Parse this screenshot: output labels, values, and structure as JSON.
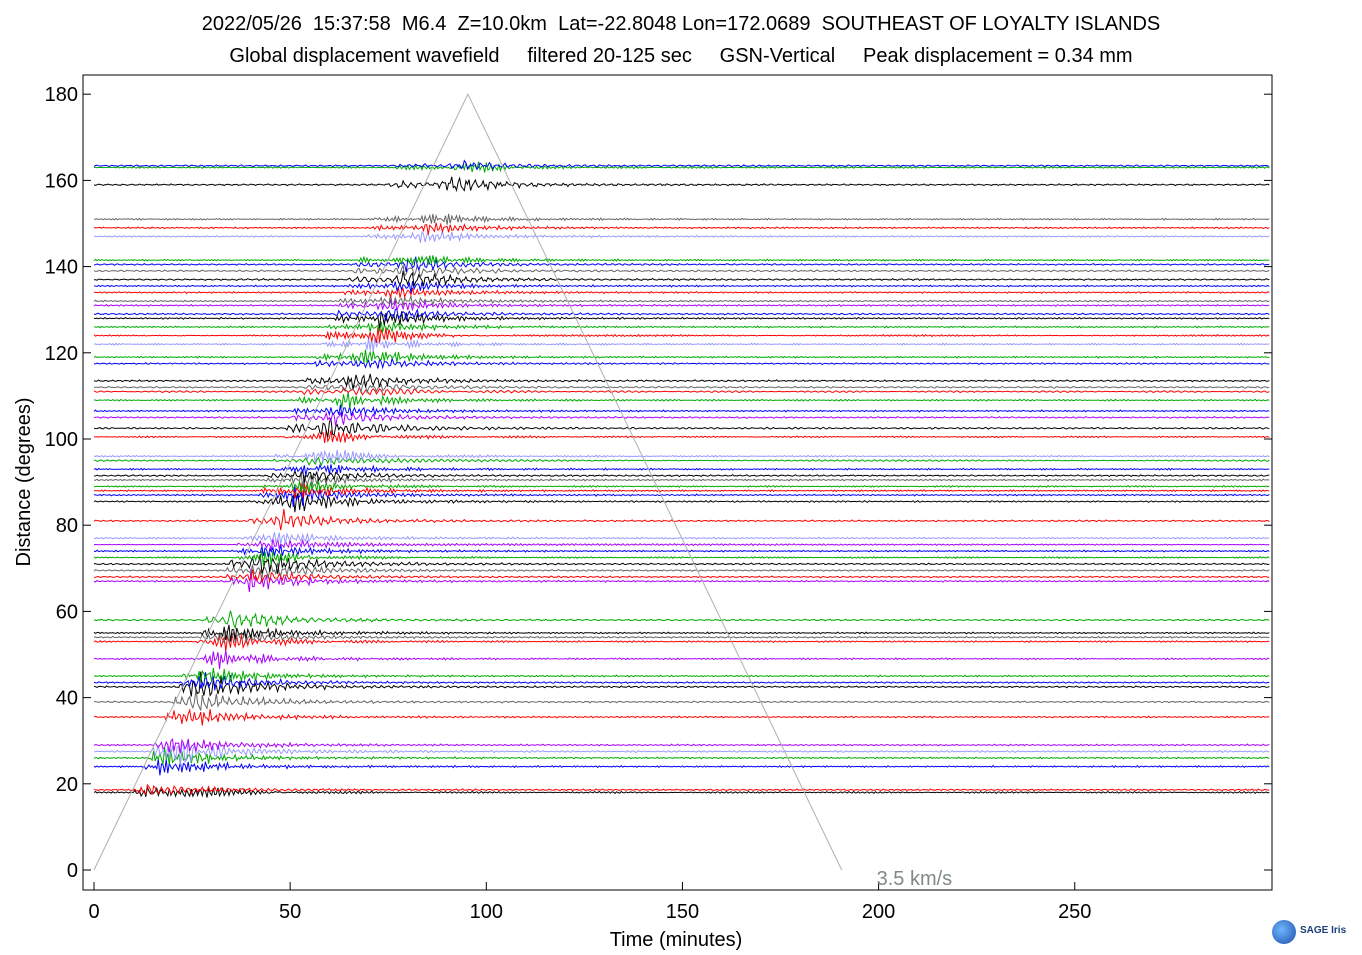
{
  "header": {
    "line1": "2022/05/26  15:37:58  M6.4  Z=10.0km  Lat=-22.8048 Lon=172.0689  SOUTHEAST OF LOYALTY ISLANDS",
    "line2": "Global displacement wavefield     filtered 20-125 sec     GSN-Vertical     Peak displacement = 0.34 mm"
  },
  "logo": {
    "text": "SAGE Iris"
  },
  "chart_data": {
    "type": "line",
    "title": "2022/05/26  15:37:58  M6.4  Z=10.0km  Lat=-22.8048 Lon=172.0689  SOUTHEAST OF LOYALTY ISLANDS",
    "subtitle": "Global displacement wavefield     filtered 20-125 sec     GSN-Vertical     Peak displacement = 0.34 mm",
    "xlabel": "Time (minutes)",
    "ylabel": "Distance (degrees)",
    "xlim": [
      -2,
      300
    ],
    "ylim": [
      -5,
      185
    ],
    "xticks": [
      0,
      50,
      100,
      150,
      200,
      250
    ],
    "yticks": [
      0,
      20,
      40,
      60,
      80,
      100,
      120,
      140,
      160,
      180
    ],
    "annotation": {
      "text": "3.5 km/s",
      "x": 200,
      "y": -2
    },
    "reference_line": {
      "label": "3.5 km/s",
      "points": [
        [
          0,
          0
        ],
        [
          95.3,
          180
        ],
        [
          190.6,
          0
        ]
      ]
    },
    "trace_colors": [
      "#000000",
      "#ff0000",
      "#0000ff",
      "#00aa00",
      "#aa00ff",
      "#9999ff",
      "#666666"
    ],
    "traces": [
      {
        "distance": 18,
        "color": "#000000",
        "amplitude": 5
      },
      {
        "distance": 18.6,
        "color": "#ff0000",
        "amplitude": 3
      },
      {
        "distance": 24,
        "color": "#0000ff",
        "amplitude": 4
      },
      {
        "distance": 26,
        "color": "#00aa00",
        "amplitude": 4
      },
      {
        "distance": 27.5,
        "color": "#9999ff",
        "amplitude": 6
      },
      {
        "distance": 29,
        "color": "#aa00ff",
        "amplitude": 4
      },
      {
        "distance": 35.5,
        "color": "#ff0000",
        "amplitude": 4
      },
      {
        "distance": 39,
        "color": "#666666",
        "amplitude": 5
      },
      {
        "distance": 42.5,
        "color": "#000000",
        "amplitude": 6
      },
      {
        "distance": 43.5,
        "color": "#0000ff",
        "amplitude": 4
      },
      {
        "distance": 45,
        "color": "#00aa00",
        "amplitude": 4
      },
      {
        "distance": 49,
        "color": "#aa00ff",
        "amplitude": 4
      },
      {
        "distance": 53,
        "color": "#ff0000",
        "amplitude": 4
      },
      {
        "distance": 54,
        "color": "#666666",
        "amplitude": 3
      },
      {
        "distance": 55,
        "color": "#000000",
        "amplitude": 4
      },
      {
        "distance": 58,
        "color": "#00aa00",
        "amplitude": 4
      },
      {
        "distance": 67,
        "color": "#aa00ff",
        "amplitude": 4
      },
      {
        "distance": 68,
        "color": "#ff0000",
        "amplitude": 3
      },
      {
        "distance": 69.5,
        "color": "#666666",
        "amplitude": 4
      },
      {
        "distance": 71,
        "color": "#000000",
        "amplitude": 5
      },
      {
        "distance": 72.5,
        "color": "#00aa00",
        "amplitude": 3
      },
      {
        "distance": 74,
        "color": "#0000ff",
        "amplitude": 3
      },
      {
        "distance": 75.5,
        "color": "#aa00ff",
        "amplitude": 4
      },
      {
        "distance": 77,
        "color": "#9999ff",
        "amplitude": 3
      },
      {
        "distance": 81,
        "color": "#ff0000",
        "amplitude": 4
      },
      {
        "distance": 85.5,
        "color": "#000000",
        "amplitude": 5
      },
      {
        "distance": 87,
        "color": "#0000ff",
        "amplitude": 4
      },
      {
        "distance": 88,
        "color": "#ff0000",
        "amplitude": 4
      },
      {
        "distance": 89,
        "color": "#00aa00",
        "amplitude": 3
      },
      {
        "distance": 90.5,
        "color": "#666666",
        "amplitude": 3
      },
      {
        "distance": 91.5,
        "color": "#000000",
        "amplitude": 3
      },
      {
        "distance": 93,
        "color": "#0000ff",
        "amplitude": 3
      },
      {
        "distance": 95,
        "color": "#00aa00",
        "amplitude": 3
      },
      {
        "distance": 96,
        "color": "#9999ff",
        "amplitude": 4
      },
      {
        "distance": 100.5,
        "color": "#ff0000",
        "amplitude": 3
      },
      {
        "distance": 102.5,
        "color": "#000000",
        "amplitude": 5
      },
      {
        "distance": 105,
        "color": "#aa00ff",
        "amplitude": 3
      },
      {
        "distance": 106.5,
        "color": "#0000ff",
        "amplitude": 3
      },
      {
        "distance": 109,
        "color": "#00aa00",
        "amplitude": 4
      },
      {
        "distance": 111,
        "color": "#ff0000",
        "amplitude": 3
      },
      {
        "distance": 112,
        "color": "#666666",
        "amplitude": 3
      },
      {
        "distance": 113.5,
        "color": "#000000",
        "amplitude": 4
      },
      {
        "distance": 117.5,
        "color": "#0000ff",
        "amplitude": 3
      },
      {
        "distance": 119,
        "color": "#00aa00",
        "amplitude": 4
      },
      {
        "distance": 122,
        "color": "#9999ff",
        "amplitude": 3
      },
      {
        "distance": 124,
        "color": "#ff0000",
        "amplitude": 4
      },
      {
        "distance": 126,
        "color": "#00aa00",
        "amplitude": 3
      },
      {
        "distance": 128,
        "color": "#000000",
        "amplitude": 4
      },
      {
        "distance": 129,
        "color": "#0000ff",
        "amplitude": 3
      },
      {
        "distance": 131,
        "color": "#aa00ff",
        "amplitude": 3
      },
      {
        "distance": 132,
        "color": "#666666",
        "amplitude": 3
      },
      {
        "distance": 134,
        "color": "#ff0000",
        "amplitude": 3
      },
      {
        "distance": 135.5,
        "color": "#0000ff",
        "amplitude": 3
      },
      {
        "distance": 137,
        "color": "#000000",
        "amplitude": 4
      },
      {
        "distance": 139,
        "color": "#666666",
        "amplitude": 3
      },
      {
        "distance": 140.5,
        "color": "#0000ff",
        "amplitude": 3
      },
      {
        "distance": 141.5,
        "color": "#00aa00",
        "amplitude": 3
      },
      {
        "distance": 147,
        "color": "#9999ff",
        "amplitude": 3
      },
      {
        "distance": 149,
        "color": "#ff0000",
        "amplitude": 3
      },
      {
        "distance": 151,
        "color": "#666666",
        "amplitude": 3
      },
      {
        "distance": 159,
        "color": "#000000",
        "amplitude": 4
      },
      {
        "distance": 163,
        "color": "#00aa00",
        "amplitude": 3
      },
      {
        "distance": 163.4,
        "color": "#0000ff",
        "amplitude": 2
      }
    ]
  }
}
